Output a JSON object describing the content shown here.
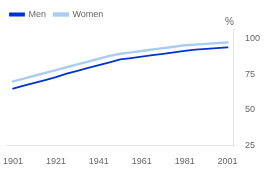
{
  "chart_data": {
    "type": "line",
    "ylabel": "%",
    "x": [
      1901,
      1906,
      1911,
      1916,
      1921,
      1926,
      1931,
      1936,
      1941,
      1946,
      1951,
      1956,
      1961,
      1966,
      1971,
      1976,
      1981,
      1986,
      1991,
      1996,
      2001
    ],
    "series": [
      {
        "name": "Men",
        "color": "#0033cc",
        "values": [
          65.0,
          67.0,
          69.0,
          71.0,
          73.0,
          75.5,
          77.5,
          79.5,
          81.5,
          83.5,
          85.5,
          86.5,
          87.5,
          88.5,
          89.5,
          90.5,
          91.5,
          92.5,
          93.0,
          93.5,
          94.0
        ]
      },
      {
        "name": "Women",
        "color": "#aaccee",
        "values": [
          70.0,
          72.0,
          74.0,
          76.0,
          78.0,
          80.0,
          82.0,
          84.0,
          86.0,
          88.0,
          89.5,
          90.5,
          91.5,
          92.5,
          93.5,
          94.5,
          95.5,
          96.0,
          96.5,
          97.0,
          97.5
        ]
      }
    ],
    "xlim": [
      1898,
      2004
    ],
    "ylim": [
      25,
      107
    ],
    "xticks": [
      1901,
      1921,
      1941,
      1961,
      1981,
      2001
    ],
    "yticks": [
      25,
      50,
      75,
      100
    ],
    "grid": false,
    "legend": "upper left"
  }
}
